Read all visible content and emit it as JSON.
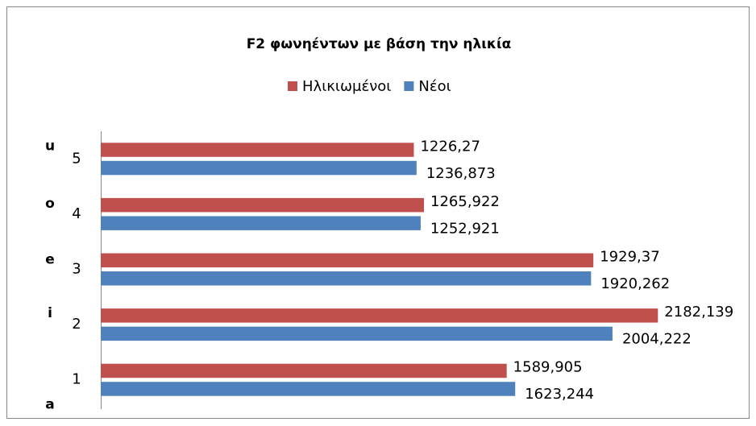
{
  "chart_data": {
    "type": "bar",
    "orientation": "horizontal",
    "title": "F2 φωνηέντων  με βάση την ηλικία",
    "categories": [
      "1",
      "2",
      "3",
      "4",
      "5"
    ],
    "group_labels": [
      "a",
      "i",
      "e",
      "o",
      "u"
    ],
    "series": [
      {
        "name": "Ηλικιωμένοι",
        "color": "#c0504d",
        "values": [
          1589.905,
          2182.139,
          1929.37,
          1265.922,
          1226.27
        ],
        "value_labels": [
          "1589,905",
          "2182,139",
          "1929,37",
          "1265,922",
          "1226,27"
        ]
      },
      {
        "name": "Νέοι",
        "color": "#4f81bd",
        "values": [
          1623.244,
          2004.222,
          1920.262,
          1252.921,
          1236.873
        ],
        "value_labels": [
          "1623,244",
          "2004,222",
          "1920,262",
          "1252,921",
          "1236,873"
        ]
      }
    ],
    "xlim": [
      0,
      2500
    ],
    "legend": "top"
  }
}
